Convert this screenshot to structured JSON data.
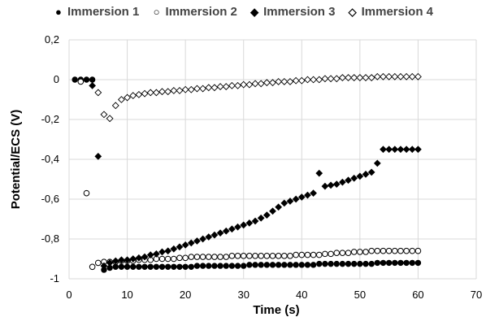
{
  "chart_data": {
    "type": "scatter",
    "xlabel": "Time (s)",
    "ylabel": "Potential/ECS (V)",
    "xlim": [
      0,
      70
    ],
    "ylim": [
      -1,
      0.2
    ],
    "xticks": [
      0,
      10,
      20,
      30,
      40,
      50,
      60,
      70
    ],
    "yticks": [
      0.2,
      0,
      -0.2,
      -0.4,
      -0.6,
      -0.8,
      -1
    ],
    "xtick_labels": [
      "0",
      "10",
      "20",
      "30",
      "40",
      "50",
      "60",
      "70"
    ],
    "ytick_labels": [
      "0,2",
      "0",
      "-0,2",
      "-0,4",
      "-0,6",
      "-0,8",
      "-1"
    ],
    "grid": true,
    "legend_position": "top",
    "series": [
      {
        "name": "Immersion 1",
        "marker": "filled-circle",
        "color": "#000000",
        "x": [
          1,
          2,
          3,
          4,
          6,
          7,
          8,
          9,
          10,
          11,
          12,
          13,
          14,
          15,
          16,
          17,
          18,
          19,
          20,
          21,
          22,
          23,
          24,
          25,
          26,
          27,
          28,
          29,
          30,
          31,
          32,
          33,
          34,
          35,
          36,
          37,
          38,
          39,
          40,
          41,
          42,
          43,
          44,
          45,
          46,
          47,
          48,
          49,
          50,
          51,
          52,
          53,
          54,
          55,
          56,
          57,
          58,
          59,
          60
        ],
        "y": [
          0,
          0,
          0,
          0,
          -0.955,
          -0.945,
          -0.94,
          -0.94,
          -0.94,
          -0.94,
          -0.94,
          -0.94,
          -0.94,
          -0.94,
          -0.94,
          -0.94,
          -0.94,
          -0.94,
          -0.94,
          -0.94,
          -0.935,
          -0.935,
          -0.935,
          -0.935,
          -0.935,
          -0.935,
          -0.935,
          -0.935,
          -0.935,
          -0.93,
          -0.93,
          -0.93,
          -0.93,
          -0.93,
          -0.93,
          -0.93,
          -0.93,
          -0.93,
          -0.93,
          -0.93,
          -0.93,
          -0.925,
          -0.925,
          -0.925,
          -0.925,
          -0.925,
          -0.925,
          -0.925,
          -0.925,
          -0.925,
          -0.925,
          -0.92,
          -0.92,
          -0.92,
          -0.92,
          -0.92,
          -0.92,
          -0.92,
          -0.92
        ]
      },
      {
        "name": "Immersion 2",
        "marker": "open-circle",
        "color": "#000000",
        "x": [
          2,
          3,
          4,
          5,
          6,
          7,
          8,
          9,
          10,
          11,
          12,
          13,
          14,
          15,
          16,
          17,
          18,
          19,
          20,
          21,
          22,
          23,
          24,
          25,
          26,
          27,
          28,
          29,
          30,
          31,
          32,
          33,
          34,
          35,
          36,
          37,
          38,
          39,
          40,
          41,
          42,
          43,
          44,
          45,
          46,
          47,
          48,
          49,
          50,
          51,
          52,
          53,
          54,
          55,
          56,
          57,
          58,
          59,
          60
        ],
        "y": [
          -0.01,
          -0.57,
          -0.94,
          -0.92,
          -0.915,
          -0.915,
          -0.915,
          -0.91,
          -0.91,
          -0.91,
          -0.905,
          -0.905,
          -0.905,
          -0.9,
          -0.9,
          -0.9,
          -0.9,
          -0.895,
          -0.895,
          -0.89,
          -0.89,
          -0.89,
          -0.89,
          -0.89,
          -0.89,
          -0.89,
          -0.885,
          -0.885,
          -0.885,
          -0.885,
          -0.885,
          -0.885,
          -0.885,
          -0.885,
          -0.885,
          -0.885,
          -0.885,
          -0.88,
          -0.88,
          -0.88,
          -0.88,
          -0.88,
          -0.875,
          -0.875,
          -0.87,
          -0.87,
          -0.87,
          -0.865,
          -0.865,
          -0.865,
          -0.86,
          -0.86,
          -0.86,
          -0.86,
          -0.86,
          -0.86,
          -0.86,
          -0.86,
          -0.86
        ]
      },
      {
        "name": "Immersion 3",
        "marker": "filled-diamond",
        "color": "#000000",
        "x": [
          4,
          5,
          6,
          7,
          8,
          9,
          10,
          11,
          12,
          13,
          14,
          15,
          16,
          17,
          18,
          19,
          20,
          21,
          22,
          23,
          24,
          25,
          26,
          27,
          28,
          29,
          30,
          31,
          32,
          33,
          34,
          35,
          36,
          37,
          38,
          39,
          40,
          41,
          42,
          43,
          44,
          45,
          46,
          47,
          48,
          49,
          50,
          51,
          52,
          53,
          54,
          55,
          56,
          57,
          58,
          59,
          60
        ],
        "y": [
          -0.03,
          -0.385,
          -0.935,
          -0.92,
          -0.91,
          -0.905,
          -0.905,
          -0.9,
          -0.895,
          -0.89,
          -0.88,
          -0.875,
          -0.865,
          -0.86,
          -0.85,
          -0.84,
          -0.83,
          -0.82,
          -0.81,
          -0.8,
          -0.79,
          -0.78,
          -0.77,
          -0.76,
          -0.75,
          -0.74,
          -0.73,
          -0.72,
          -0.71,
          -0.695,
          -0.68,
          -0.66,
          -0.64,
          -0.62,
          -0.61,
          -0.6,
          -0.59,
          -0.58,
          -0.57,
          -0.47,
          -0.535,
          -0.53,
          -0.525,
          -0.515,
          -0.505,
          -0.495,
          -0.485,
          -0.475,
          -0.465,
          -0.42,
          -0.35,
          -0.35,
          -0.35,
          -0.35,
          -0.35,
          -0.35,
          -0.35
        ]
      },
      {
        "name": "Immersion 4",
        "marker": "open-diamond",
        "color": "#000000",
        "x": [
          5,
          6,
          7,
          8,
          9,
          10,
          11,
          12,
          13,
          14,
          15,
          16,
          17,
          18,
          19,
          20,
          21,
          22,
          23,
          24,
          25,
          26,
          27,
          28,
          29,
          30,
          31,
          32,
          33,
          34,
          35,
          36,
          37,
          38,
          39,
          40,
          41,
          42,
          43,
          44,
          45,
          46,
          47,
          48,
          49,
          50,
          51,
          52,
          53,
          54,
          55,
          56,
          57,
          58,
          59,
          60
        ],
        "y": [
          -0.065,
          -0.175,
          -0.195,
          -0.13,
          -0.1,
          -0.09,
          -0.08,
          -0.075,
          -0.07,
          -0.065,
          -0.065,
          -0.06,
          -0.06,
          -0.055,
          -0.055,
          -0.05,
          -0.05,
          -0.045,
          -0.045,
          -0.04,
          -0.04,
          -0.035,
          -0.035,
          -0.03,
          -0.03,
          -0.025,
          -0.025,
          -0.02,
          -0.02,
          -0.015,
          -0.015,
          -0.01,
          -0.01,
          -0.01,
          -0.005,
          -0.005,
          0,
          0,
          0,
          0.005,
          0.005,
          0.005,
          0.01,
          0.01,
          0.01,
          0.01,
          0.01,
          0.01,
          0.015,
          0.015,
          0.015,
          0.015,
          0.015,
          0.015,
          0.015,
          0.015
        ]
      }
    ]
  }
}
